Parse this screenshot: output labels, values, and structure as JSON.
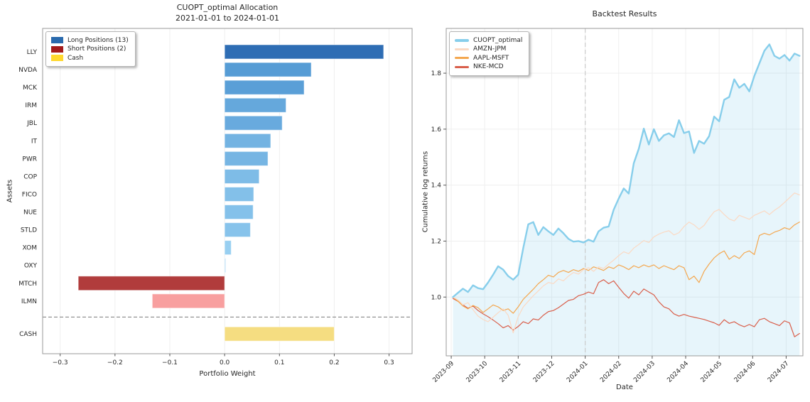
{
  "chart_data": [
    {
      "type": "bar",
      "orientation": "horizontal",
      "title_line1": "CUOPT_optimal Allocation",
      "title_line2": "2021-01-01 to 2024-01-01",
      "xlabel": "Portfolio Weight",
      "ylabel": "Assets",
      "categories": [
        "LLY",
        "NVDA",
        "MCK",
        "IRM",
        "JBL",
        "IT",
        "PWR",
        "COP",
        "FICO",
        "NUE",
        "STLD",
        "XOM",
        "OXY",
        "MTCH",
        "ILMN",
        "CASH"
      ],
      "values": [
        0.29,
        0.158,
        0.145,
        0.112,
        0.105,
        0.084,
        0.079,
        0.063,
        0.053,
        0.052,
        0.047,
        0.012,
        0.002,
        -0.267,
        -0.132,
        0.2
      ],
      "bar_colors": [
        "#2e6db4",
        "#569cd5",
        "#5a9fd7",
        "#65a8dc",
        "#68aade",
        "#73b3e2",
        "#76b5e3",
        "#7ebce7",
        "#83c0e9",
        "#84c1ea",
        "#87c3eb",
        "#98cff1",
        "#b3dcf6",
        "#b13c3c",
        "#f89f9f",
        "#f5dd81"
      ],
      "row_positions": [
        0,
        1,
        2,
        3,
        4,
        5,
        6,
        7,
        8,
        9,
        10,
        11,
        12,
        13,
        14,
        15.85
      ],
      "xlim": [
        -0.332,
        0.342
      ],
      "xticks": [
        -0.3,
        -0.2,
        -0.1,
        0.0,
        0.1,
        0.2,
        0.3
      ],
      "xtick_labels": [
        "−0.3",
        "−0.2",
        "−0.1",
        "0.0",
        "0.1",
        "0.2",
        "0.3"
      ],
      "separator_y_row": 14.9,
      "legend": [
        {
          "label": "Long Positions (13)",
          "color": "#2a6aad"
        },
        {
          "label": "Short Positions (2)",
          "color": "#a31b1b"
        },
        {
          "label": "Cash",
          "color": "#ffd82e"
        }
      ],
      "grid": true
    },
    {
      "type": "line",
      "title": "Backtest Results",
      "xlabel": "Date",
      "ylabel": "Cumulative log returns",
      "xticks": [
        0,
        1,
        2,
        3,
        4,
        5,
        6,
        7,
        8,
        9,
        10
      ],
      "xtick_labels": [
        "2023-09",
        "2023-10",
        "2023-11",
        "2023-12",
        "2024-01",
        "2024-02",
        "2024-03",
        "2024-04",
        "2024-05",
        "2024-06",
        "2024-07"
      ],
      "yticks": [
        1.0,
        1.2,
        1.4,
        1.6,
        1.8
      ],
      "xlim": [
        -0.15,
        10.5
      ],
      "ylim": [
        0.79,
        1.96
      ],
      "vline_x": 4.0,
      "grid": true,
      "legend_position": "upper left",
      "x": [
        0.05,
        0.2,
        0.35,
        0.5,
        0.65,
        0.8,
        0.95,
        1.1,
        1.25,
        1.4,
        1.55,
        1.7,
        1.85,
        2,
        2.15,
        2.3,
        2.45,
        2.6,
        2.75,
        2.9,
        3.05,
        3.2,
        3.35,
        3.5,
        3.65,
        3.8,
        3.95,
        4.1,
        4.25,
        4.4,
        4.55,
        4.7,
        4.85,
        5,
        5.15,
        5.3,
        5.45,
        5.6,
        5.75,
        5.9,
        6.05,
        6.2,
        6.35,
        6.5,
        6.65,
        6.8,
        6.95,
        7.1,
        7.25,
        7.4,
        7.55,
        7.7,
        7.85,
        8,
        8.15,
        8.3,
        8.45,
        8.6,
        8.75,
        8.9,
        9.05,
        9.2,
        9.35,
        9.5,
        9.65,
        9.8,
        9.95,
        10.1,
        10.25,
        10.4
      ],
      "series": [
        {
          "name": "CUOPT_optimal",
          "color": "#87ceeb",
          "width": 2.4,
          "fill": true,
          "values": [
            1.0,
            1.015,
            1.03,
            1.018,
            1.042,
            1.032,
            1.028,
            1.052,
            1.08,
            1.11,
            1.098,
            1.075,
            1.062,
            1.08,
            1.175,
            1.26,
            1.268,
            1.222,
            1.25,
            1.235,
            1.222,
            1.245,
            1.228,
            1.208,
            1.198,
            1.2,
            1.195,
            1.205,
            1.198,
            1.235,
            1.248,
            1.252,
            1.312,
            1.352,
            1.388,
            1.37,
            1.478,
            1.53,
            1.602,
            1.545,
            1.6,
            1.558,
            1.578,
            1.585,
            1.572,
            1.632,
            1.586,
            1.592,
            1.515,
            1.558,
            1.548,
            1.575,
            1.645,
            1.628,
            1.705,
            1.715,
            1.778,
            1.748,
            1.762,
            1.735,
            1.79,
            1.835,
            1.88,
            1.903,
            1.862,
            1.852,
            1.865,
            1.845,
            1.87,
            1.862
          ]
        },
        {
          "name": "AMZN-JPM",
          "color": "#fbd9c3",
          "width": 1.2,
          "fill": false,
          "values": [
            1.0,
            0.99,
            0.972,
            0.98,
            0.955,
            0.932,
            0.92,
            0.912,
            0.928,
            0.944,
            0.958,
            0.935,
            0.872,
            0.93,
            0.965,
            0.985,
            1.005,
            1.022,
            1.04,
            1.052,
            1.048,
            1.065,
            1.058,
            1.075,
            1.088,
            1.082,
            1.098,
            1.105,
            1.092,
            1.108,
            1.102,
            1.118,
            1.132,
            1.148,
            1.162,
            1.155,
            1.175,
            1.188,
            1.202,
            1.195,
            1.215,
            1.225,
            1.232,
            1.237,
            1.222,
            1.23,
            1.252,
            1.268,
            1.258,
            1.242,
            1.256,
            1.282,
            1.305,
            1.313,
            1.295,
            1.279,
            1.272,
            1.292,
            1.285,
            1.278,
            1.292,
            1.3,
            1.308,
            1.295,
            1.31,
            1.322,
            1.338,
            1.355,
            1.372,
            1.365
          ]
        },
        {
          "name": "AAPL-MSFT",
          "color": "#f4a74f",
          "width": 1.2,
          "fill": false,
          "values": [
            1.0,
            0.985,
            0.968,
            0.958,
            0.97,
            0.962,
            0.945,
            0.958,
            0.972,
            0.965,
            0.952,
            0.958,
            0.942,
            0.965,
            0.992,
            1.01,
            1.028,
            1.048,
            1.062,
            1.078,
            1.072,
            1.088,
            1.095,
            1.088,
            1.098,
            1.092,
            1.102,
            1.095,
            1.108,
            1.102,
            1.095,
            1.108,
            1.102,
            1.115,
            1.108,
            1.098,
            1.112,
            1.105,
            1.115,
            1.108,
            1.115,
            1.102,
            1.112,
            1.105,
            1.098,
            1.112,
            1.105,
            1.062,
            1.075,
            1.052,
            1.092,
            1.118,
            1.14,
            1.155,
            1.165,
            1.135,
            1.148,
            1.138,
            1.158,
            1.165,
            1.152,
            1.22,
            1.228,
            1.222,
            1.232,
            1.238,
            1.248,
            1.242,
            1.258,
            1.268
          ]
        },
        {
          "name": "NKE-MCD",
          "color": "#d95f4b",
          "width": 1.2,
          "fill": false,
          "values": [
            0.995,
            0.985,
            0.972,
            0.96,
            0.968,
            0.952,
            0.94,
            0.93,
            0.918,
            0.905,
            0.89,
            0.898,
            0.882,
            0.895,
            0.912,
            0.905,
            0.922,
            0.918,
            0.935,
            0.948,
            0.952,
            0.962,
            0.975,
            0.988,
            0.992,
            1.005,
            1.01,
            1.018,
            1.012,
            1.052,
            1.062,
            1.048,
            1.058,
            1.035,
            1.013,
            0.996,
            1.021,
            1.008,
            1.029,
            1.018,
            1.008,
            0.983,
            0.965,
            0.958,
            0.94,
            0.932,
            0.938,
            0.932,
            0.928,
            0.924,
            0.92,
            0.914,
            0.908,
            0.899,
            0.919,
            0.906,
            0.912,
            0.901,
            0.894,
            0.902,
            0.894,
            0.919,
            0.924,
            0.912,
            0.905,
            0.898,
            0.915,
            0.908,
            0.858,
            0.87
          ]
        }
      ]
    }
  ],
  "colors": {
    "fill_under_cuopt": "rgba(135,206,235,0.2)",
    "gridline": "#efefef",
    "spine": "#9a9a9a",
    "vline_dashed": "#cbcbcb",
    "separator_dashed": "#7a7a7a",
    "tick_text": "#262626"
  }
}
